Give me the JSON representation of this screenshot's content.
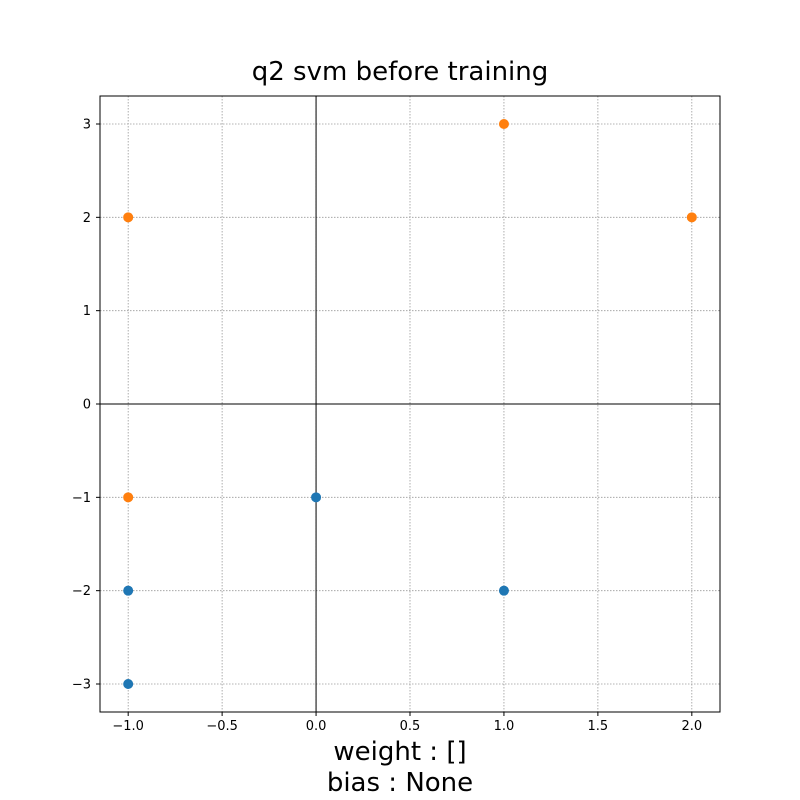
{
  "chart_data": {
    "type": "scatter",
    "title": "q2 svm before training",
    "xlabel": "",
    "ylabel": "",
    "xlim": [
      -1.15,
      2.15
    ],
    "ylim": [
      -3.3,
      3.3
    ],
    "x_ticks": [
      -1.0,
      -0.5,
      0.0,
      0.5,
      1.0,
      1.5,
      2.0
    ],
    "x_tick_labels": [
      "−1.0",
      "−0.5",
      "0.0",
      "0.5",
      "1.0",
      "1.5",
      "2.0"
    ],
    "y_ticks": [
      -3,
      -2,
      -1,
      0,
      1,
      2,
      3
    ],
    "y_tick_labels": [
      "−3",
      "−2",
      "−1",
      "0",
      "1",
      "2",
      "3"
    ],
    "grid": true,
    "axis_lines_through_origin": true,
    "series": [
      {
        "color": "#1f77b4",
        "points": [
          [
            -1,
            -2
          ],
          [
            -1,
            -3
          ],
          [
            0,
            -1
          ],
          [
            1,
            -2
          ]
        ]
      },
      {
        "color": "#ff7f0e",
        "points": [
          [
            -1,
            2
          ],
          [
            -1,
            -1
          ],
          [
            1,
            3
          ],
          [
            2,
            2
          ]
        ]
      }
    ],
    "caption": {
      "line1": "weight : []",
      "line2": "bias : None"
    }
  }
}
